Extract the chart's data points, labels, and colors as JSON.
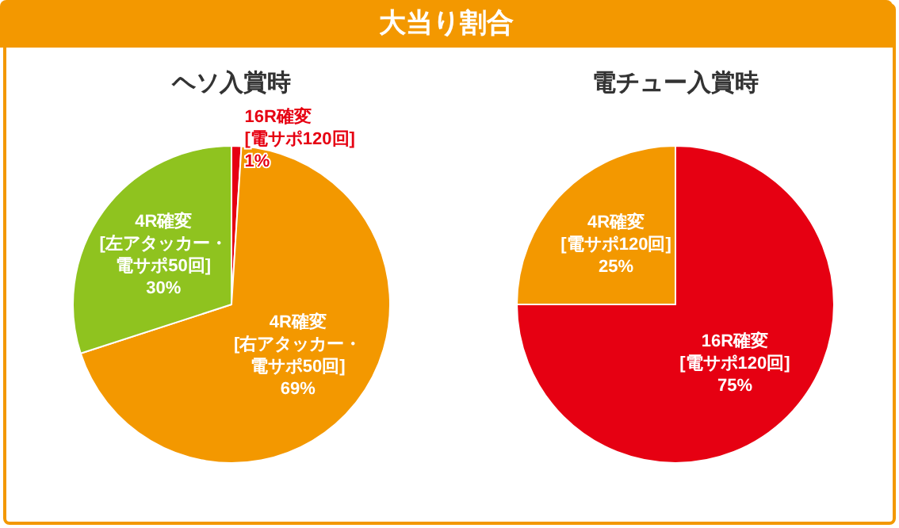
{
  "chart_data": [
    {
      "type": "other",
      "title": "大当り割合"
    },
    {
      "type": "pie",
      "title": "ヘソ入賞時",
      "categories": [
        "16R確変\n[電サポ120回]",
        "4R確変\n[右アタッカー・電サポ50回]",
        "4R確変\n[左アタッカー・電サポ50回]"
      ],
      "values": [
        1,
        69,
        30
      ],
      "value_labels": [
        "1%",
        "69%",
        "30%"
      ],
      "colors": [
        "#e60012",
        "#f39800",
        "#8fc31f"
      ]
    },
    {
      "type": "pie",
      "title": "電チュー入賞時",
      "categories": [
        "16R確変\n[電サポ120回]",
        "4R確変\n[電サポ120回]"
      ],
      "values": [
        75,
        25
      ],
      "value_labels": [
        "75%",
        "25%"
      ],
      "colors": [
        "#e60012",
        "#f39800"
      ]
    }
  ]
}
